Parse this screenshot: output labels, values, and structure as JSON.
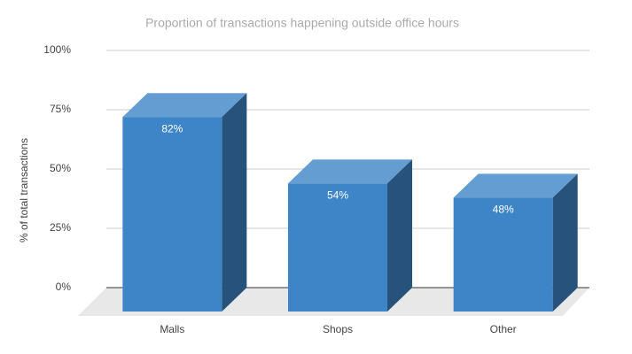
{
  "chart_data": {
    "type": "bar3d",
    "title": "Proportion of transactions happening outside office hours",
    "y_axis_label": "% of total transactions",
    "categories": [
      "Malls",
      "Shops",
      "Other"
    ],
    "values": [
      82,
      54,
      48
    ],
    "value_labels": [
      "82%",
      "54%",
      "48%"
    ],
    "color": "#3d85c6",
    "ylim": [
      0,
      100
    ],
    "yticks": [
      {
        "value": 0,
        "label": "0%"
      },
      {
        "value": 25,
        "label": "25%"
      },
      {
        "value": 50,
        "label": "50%"
      },
      {
        "value": 75,
        "label": "75%"
      },
      {
        "value": 100,
        "label": "100%"
      }
    ],
    "grid": true
  }
}
